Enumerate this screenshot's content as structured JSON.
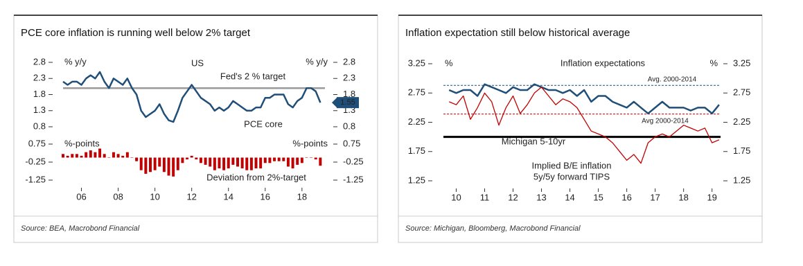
{
  "chart_data": [
    {
      "type": "line",
      "title": "PCE core inflation is running well below 2% target",
      "subtitle": "US",
      "y_label": "% y/y",
      "y2_label": "% y/y",
      "source": "Source: BEA, Macrobond Financial",
      "xlim": [
        2005,
        2019.25
      ],
      "ylim": [
        0.8,
        2.8
      ],
      "yticks": [
        2.8,
        2.3,
        1.8,
        1.3,
        0.8
      ],
      "y2lim": [
        0.8,
        2.8
      ],
      "y2ticks": [
        2.8,
        2.3,
        1.8,
        1.3,
        0.8
      ],
      "hlines": [
        {
          "value": 2.0,
          "label": "Fed's 2 % target",
          "color": "#9a9a9a"
        }
      ],
      "x": [
        2005,
        2005.25,
        2005.5,
        2005.75,
        2006,
        2006.25,
        2006.5,
        2006.75,
        2007,
        2007.25,
        2007.5,
        2007.75,
        2008,
        2008.25,
        2008.5,
        2008.75,
        2009,
        2009.25,
        2009.5,
        2009.75,
        2010,
        2010.25,
        2010.5,
        2010.75,
        2011,
        2011.25,
        2011.5,
        2011.75,
        2012,
        2012.25,
        2012.5,
        2012.75,
        2013,
        2013.25,
        2013.5,
        2013.75,
        2014,
        2014.25,
        2014.5,
        2014.75,
        2015,
        2015.25,
        2015.5,
        2015.75,
        2016,
        2016.25,
        2016.5,
        2016.75,
        2017,
        2017.25,
        2017.5,
        2017.75,
        2018,
        2018.25,
        2018.5,
        2018.75,
        2019
      ],
      "series": [
        {
          "name": "PCE core",
          "color": "#1f4e79",
          "values": [
            2.2,
            2.1,
            2.2,
            2.2,
            2.1,
            2.3,
            2.4,
            2.3,
            2.5,
            2.2,
            2.0,
            2.3,
            2.2,
            2.1,
            2.3,
            2.0,
            1.8,
            1.3,
            1.1,
            1.2,
            1.3,
            1.5,
            1.2,
            1.0,
            0.95,
            1.3,
            1.7,
            1.9,
            2.1,
            1.9,
            1.7,
            1.6,
            1.5,
            1.3,
            1.4,
            1.3,
            1.4,
            1.6,
            1.5,
            1.4,
            1.3,
            1.3,
            1.4,
            1.4,
            1.7,
            1.7,
            1.8,
            1.8,
            1.8,
            1.5,
            1.4,
            1.6,
            1.7,
            2.0,
            2.0,
            1.9,
            1.55
          ]
        }
      ]
    },
    {
      "type": "bar",
      "y_label": "%-points",
      "y2_label": "%-points",
      "xlim": [
        2005,
        2019.25
      ],
      "xticks": [
        {
          "value": 2006,
          "label": "06"
        },
        {
          "value": 2008,
          "label": "08"
        },
        {
          "value": 2010,
          "label": "10"
        },
        {
          "value": 2012,
          "label": "12"
        },
        {
          "value": 2014,
          "label": "14"
        },
        {
          "value": 2016,
          "label": "16"
        },
        {
          "value": 2018,
          "label": "18"
        }
      ],
      "ylim": [
        -1.25,
        0.75
      ],
      "yticks": [
        0.75,
        -0.25,
        -1.25
      ],
      "y2lim": [
        -1.25,
        0.75
      ],
      "y2ticks": [
        0.75,
        -0.25,
        -1.25
      ],
      "x": [
        2005,
        2005.25,
        2005.5,
        2005.75,
        2006,
        2006.25,
        2006.5,
        2006.75,
        2007,
        2007.25,
        2007.5,
        2007.75,
        2008,
        2008.25,
        2008.5,
        2008.75,
        2009,
        2009.25,
        2009.5,
        2009.75,
        2010,
        2010.25,
        2010.5,
        2010.75,
        2011,
        2011.25,
        2011.5,
        2011.75,
        2012,
        2012.25,
        2012.5,
        2012.75,
        2013,
        2013.25,
        2013.5,
        2013.75,
        2014,
        2014.25,
        2014.5,
        2014.75,
        2015,
        2015.25,
        2015.5,
        2015.75,
        2016,
        2016.25,
        2016.5,
        2016.75,
        2017,
        2017.25,
        2017.5,
        2017.75,
        2018,
        2018.25,
        2018.5,
        2018.75,
        2019
      ],
      "series": [
        {
          "name": "Deviation from 2%-target",
          "color": "#c00000",
          "values": [
            0.2,
            0.1,
            0.2,
            0.2,
            0.1,
            0.3,
            0.4,
            0.3,
            0.5,
            0.2,
            0,
            0.3,
            0.2,
            0.1,
            0.3,
            0,
            -0.2,
            -0.7,
            -0.9,
            -0.8,
            -0.7,
            -0.5,
            -0.8,
            -1.0,
            -1.05,
            -0.7,
            -0.3,
            -0.1,
            0.1,
            -0.1,
            -0.3,
            -0.4,
            -0.5,
            -0.7,
            -0.6,
            -0.7,
            -0.6,
            -0.4,
            -0.5,
            -0.6,
            -0.7,
            -0.7,
            -0.6,
            -0.6,
            -0.3,
            -0.3,
            -0.2,
            -0.2,
            -0.2,
            -0.5,
            -0.6,
            -0.4,
            -0.3,
            0,
            0,
            -0.1,
            -0.45
          ]
        }
      ]
    },
    {
      "type": "line",
      "title": "Inflation expectation still below historical average",
      "subtitle": "Inflation expectations",
      "y_label": "%",
      "y2_label": "%",
      "source": "Source: Michigan, Bloomberg, Macrobond Financial",
      "xlim": [
        2009.55,
        2019.3
      ],
      "xticks": [
        {
          "value": 2010,
          "label": "10"
        },
        {
          "value": 2011,
          "label": "11"
        },
        {
          "value": 2012,
          "label": "12"
        },
        {
          "value": 2013,
          "label": "13"
        },
        {
          "value": 2014,
          "label": "14"
        },
        {
          "value": 2015,
          "label": "15"
        },
        {
          "value": 2016,
          "label": "16"
        },
        {
          "value": 2017,
          "label": "17"
        },
        {
          "value": 2018,
          "label": "18"
        },
        {
          "value": 2019,
          "label": "19"
        }
      ],
      "ylim": [
        1.25,
        3.25
      ],
      "yticks": [
        3.25,
        2.75,
        2.25,
        1.75,
        1.25
      ],
      "y2lim": [
        1.25,
        3.25
      ],
      "y2ticks": [
        3.25,
        2.75,
        2.25,
        1.75,
        1.25
      ],
      "hlines": [
        {
          "value": 2.88,
          "label": "Avg. 2000-2014",
          "color": "#1f4e79",
          "dashed": true
        },
        {
          "value": 2.39,
          "label": "Avg 2000-2014",
          "color": "#c00000",
          "dashed": true
        },
        {
          "value": 2.0,
          "color": "#000000"
        }
      ],
      "x": [
        2009.75,
        2010,
        2010.25,
        2010.5,
        2010.75,
        2011,
        2011.25,
        2011.5,
        2011.75,
        2012,
        2012.25,
        2012.5,
        2012.75,
        2013,
        2013.25,
        2013.5,
        2013.75,
        2014,
        2014.25,
        2014.5,
        2014.75,
        2015,
        2015.25,
        2015.5,
        2015.75,
        2016,
        2016.25,
        2016.5,
        2016.75,
        2017,
        2017.25,
        2017.5,
        2017.75,
        2018,
        2018.25,
        2018.5,
        2018.75,
        2019,
        2019.25
      ],
      "series": [
        {
          "name": "Michigan 5-10yr",
          "color": "#1f4e79",
          "values": [
            2.8,
            2.75,
            2.8,
            2.8,
            2.7,
            2.9,
            2.85,
            2.8,
            2.75,
            2.85,
            2.8,
            2.8,
            2.9,
            2.85,
            2.8,
            2.8,
            2.75,
            2.8,
            2.7,
            2.8,
            2.6,
            2.7,
            2.7,
            2.6,
            2.55,
            2.5,
            2.6,
            2.5,
            2.4,
            2.5,
            2.6,
            2.5,
            2.5,
            2.5,
            2.45,
            2.5,
            2.5,
            2.4,
            2.55
          ]
        },
        {
          "name": "Implied B/E inflation",
          "subname": "5y/5y forward TIPS",
          "color": "#c00000",
          "values": [
            2.6,
            2.55,
            2.7,
            2.3,
            2.5,
            2.75,
            2.6,
            2.2,
            2.5,
            2.7,
            2.4,
            2.55,
            2.75,
            2.85,
            2.7,
            2.55,
            2.65,
            2.6,
            2.5,
            2.3,
            2.1,
            2.05,
            2.0,
            1.9,
            1.75,
            1.6,
            1.7,
            1.55,
            1.9,
            2.0,
            2.05,
            2.0,
            2.1,
            2.2,
            2.15,
            2.1,
            2.15,
            1.9,
            1.95
          ]
        }
      ]
    }
  ]
}
